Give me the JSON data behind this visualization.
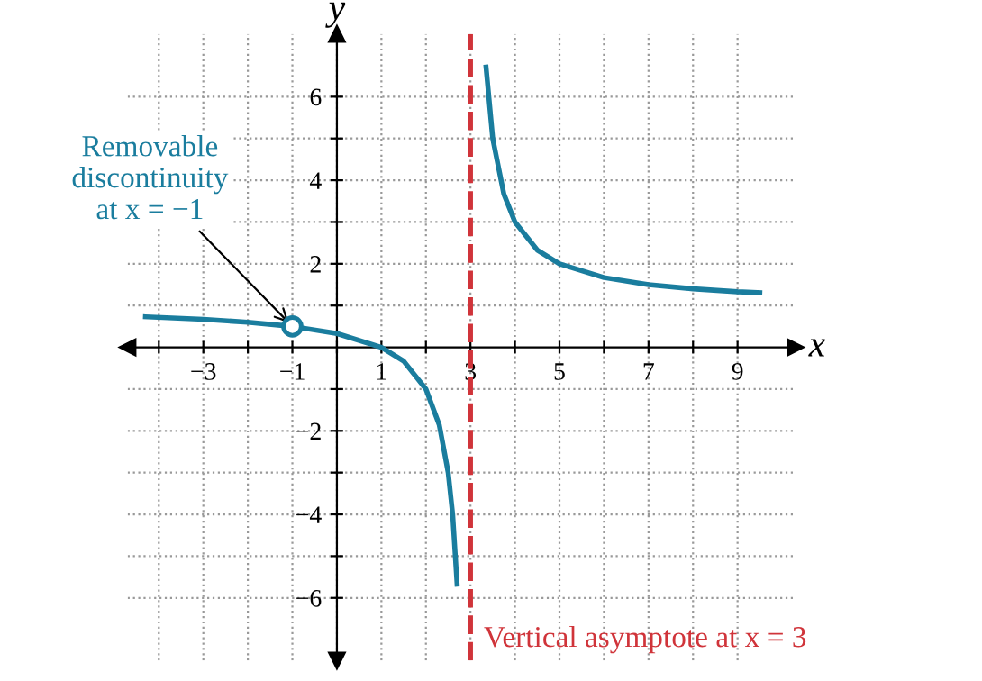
{
  "chart_data": {
    "type": "line",
    "xlabel": "x",
    "ylabel": "y",
    "xlim": [
      -4.7,
      10.3
    ],
    "ylim": [
      -7.5,
      7.5
    ],
    "xticks": [
      {
        "value": -4,
        "label": null
      },
      -3,
      {
        "value": -2,
        "label": null
      },
      -1,
      {
        "value": 0,
        "label": null
      },
      1,
      {
        "value": 2,
        "label": null
      },
      3,
      {
        "value": 4,
        "label": null
      },
      5,
      {
        "value": 6,
        "label": null
      },
      7,
      {
        "value": 8,
        "label": null
      },
      9
    ],
    "yticks": [
      -6,
      {
        "value": -5,
        "label": null
      },
      -4,
      {
        "value": -3,
        "label": null
      },
      -2,
      {
        "value": -1,
        "label": null
      },
      {
        "value": 1,
        "label": null
      },
      2,
      {
        "value": 3,
        "label": null
      },
      4,
      {
        "value": 5,
        "label": null
      },
      6
    ],
    "grid": true,
    "series": [
      {
        "color": "#1a7d9e",
        "x": [
          -4.3,
          -3,
          -2,
          -1,
          0,
          1,
          1.5,
          2,
          2.3,
          2.5,
          2.6,
          2.7
        ],
        "values": [
          0.73,
          0.67,
          0.6,
          0.5,
          0.33,
          0,
          -0.33,
          -1,
          -1.86,
          -3,
          -4,
          -5.67
        ]
      },
      {
        "color": "#1a7d9e",
        "x": [
          3.35,
          3.5,
          3.75,
          4,
          4.5,
          5,
          6,
          7,
          8,
          9,
          9.5
        ],
        "values": [
          6.71,
          5,
          3.67,
          3,
          2.33,
          2,
          1.67,
          1.5,
          1.4,
          1.33,
          1.31
        ]
      },
      {
        "type": "scatter",
        "color": "#1a7d9e",
        "marker": "circle",
        "x": [
          -1
        ],
        "values": [
          0.5
        ]
      }
    ],
    "ref_lines": [
      {
        "axis": "x",
        "value": 3,
        "label": "Vertical asymptote at x = 3",
        "color": "#d0343a",
        "line_style": "dashed"
      }
    ],
    "annotations": [
      {
        "text": "Removable\ndiscontinuity\nat x = −1",
        "x": -1,
        "y": 0.5
      }
    ]
  }
}
